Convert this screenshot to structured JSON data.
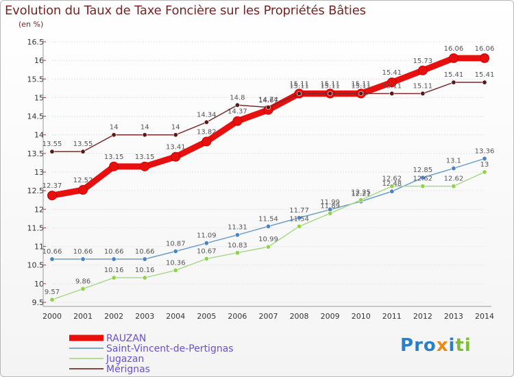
{
  "header": {
    "title": "Evolution du Taux de Taxe Foncière sur les Propriétés Bâties",
    "subtitle": "(en %)"
  },
  "logo": {
    "text": "Proxiti",
    "colors": [
      "#2a7fc7",
      "#e8891c",
      "#7bbf3a"
    ]
  },
  "chart_data": {
    "type": "line",
    "title": "Evolution du Taux de Taxe Foncière sur les Propriétés Bâties",
    "subtitle": "(en %)",
    "xlabel": "",
    "ylabel": "",
    "x": [
      "2000",
      "2001",
      "2002",
      "2003",
      "2004",
      "2005",
      "2006",
      "2007",
      "2008",
      "2009",
      "2010",
      "2011",
      "2012",
      "2013",
      "2014"
    ],
    "ylim": [
      9.5,
      16.5
    ],
    "y_ticks": [
      "9.5",
      "10",
      "10.5",
      "11",
      "11.5",
      "12",
      "12.5",
      "13",
      "13.5",
      "14",
      "14.5",
      "15",
      "15.5",
      "16",
      "16.5"
    ],
    "grid": true,
    "legend": "bottom-left",
    "series": [
      {
        "name": "RAUZAN",
        "color": "#e8100e",
        "emphasis": true,
        "values": [
          12.37,
          12.52,
          13.15,
          13.15,
          13.41,
          13.82,
          14.37,
          14.67,
          15.11,
          15.11,
          15.11,
          15.41,
          15.73,
          16.06,
          16.06
        ]
      },
      {
        "name": "Saint-Vincent-de-Pertignas",
        "color": "#6c9ec9",
        "marker": "#4a83c4",
        "values": [
          10.66,
          10.66,
          10.66,
          10.66,
          10.87,
          11.09,
          11.31,
          11.54,
          11.77,
          11.99,
          12.21,
          12.48,
          12.85,
          13.1,
          13.36
        ]
      },
      {
        "name": "Jugazan",
        "color": "#a8d88a",
        "marker": "#8fd448",
        "values": [
          9.57,
          9.86,
          10.16,
          10.16,
          10.36,
          10.67,
          10.83,
          10.99,
          11.54,
          11.89,
          12.25,
          12.62,
          12.62,
          12.62,
          13
        ]
      },
      {
        "name": "Mérignas",
        "color": "#7a2a2a",
        "marker": "#5a1a1a",
        "values": [
          13.55,
          13.55,
          14,
          14,
          14,
          14.34,
          14.8,
          14.74,
          15.11,
          15.11,
          15.11,
          15.11,
          15.11,
          15.41,
          15.41
        ]
      }
    ]
  }
}
